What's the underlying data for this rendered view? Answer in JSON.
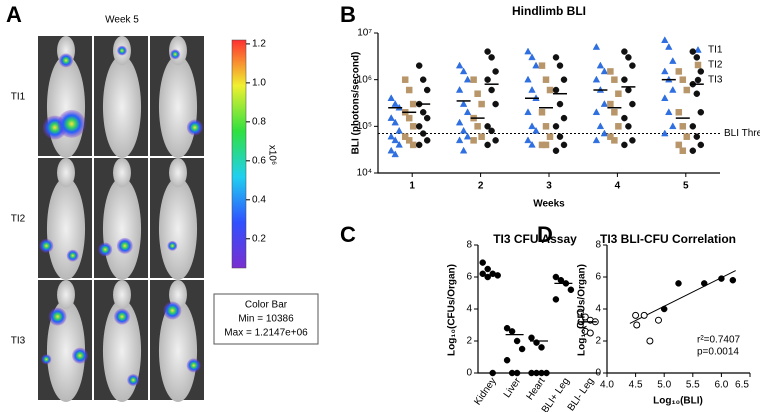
{
  "chart_data": [
    {
      "type": "image-grid",
      "panel_label": "A",
      "title": "Week 5",
      "rows": [
        "TI1",
        "TI2",
        "TI3"
      ],
      "colorbar": {
        "ylim": [
          0.05,
          1.22
        ],
        "yticks": [
          0.2,
          0.4,
          0.6,
          0.8,
          {
            "value": 1,
            "label": "1.0"
          },
          1.2
        ],
        "label": "x10⁶",
        "box": [
          "Color Bar",
          "Min = 10386",
          "Max = 1.2147e+06"
        ]
      }
    },
    {
      "type": "strip",
      "panel_label": "B",
      "title": "Hindlimb BLI",
      "ylabel": "BLI (photons/second)",
      "xlabel": "Weeks",
      "log_y": true,
      "x": [
        1,
        2,
        3,
        4,
        5
      ],
      "xlim": [
        0.5,
        5.5
      ],
      "ylim": [
        10000.0,
        10000000.0
      ],
      "yticks": [
        {
          "value": 10000.0,
          "label": "10⁴"
        },
        {
          "value": 100000.0,
          "label": "10⁵"
        },
        {
          "value": 1000000.0,
          "label": "10⁶"
        },
        {
          "value": 10000000.0,
          "label": "10⁷"
        }
      ],
      "threshold": {
        "value": 70000.0,
        "label": "BLI Threshold"
      },
      "series": [
        {
          "name": "TI1",
          "color": "#2f6fe0",
          "marker": "triangle",
          "values": [
            [
              400000.0,
              300000.0,
              250000.0,
              150000.0,
              120000.0,
              80000.0,
              60000.0,
              50000.0,
              40000.0,
              30000.0,
              25000.0
            ],
            [
              2000000.0,
              1500000.0,
              1000000.0,
              600000.0,
              300000.0,
              200000.0,
              120000.0,
              80000.0,
              60000.0,
              50000.0,
              30000.0
            ],
            [
              4000000.0,
              3000000.0,
              2000000.0,
              1000000.0,
              600000.0,
              400000.0,
              200000.0,
              100000.0,
              80000.0,
              50000.0,
              40000.0
            ],
            [
              5000000.0,
              2000000.0,
              1500000.0,
              1000000.0,
              600000.0,
              300000.0,
              200000.0,
              100000.0,
              70000.0,
              50000.0
            ],
            [
              7000000.0,
              5000000.0,
              2500000.0,
              1500000.0,
              1000000.0,
              600000.0,
              400000.0,
              200000.0,
              100000.0,
              70000.0
            ]
          ],
          "medians": [
            250000.0,
            350000.0,
            400000.0,
            600000.0,
            1000000.0
          ]
        },
        {
          "name": "TI2",
          "color": "#b8966a",
          "marker": "square",
          "values": [
            [
              1000000.0,
              600000.0,
              300000.0,
              200000.0,
              150000.0,
              100000.0,
              60000.0,
              50000.0,
              40000.0
            ],
            [
              1000000.0,
              500000.0,
              300000.0,
              150000.0,
              100000.0,
              60000.0,
              50000.0
            ],
            [
              2000000.0,
              1000000.0,
              600000.0,
              200000.0,
              100000.0,
              60000.0,
              40000.0,
              40000.0
            ],
            [
              1500000.0,
              1000000.0,
              500000.0,
              300000.0,
              200000.0,
              100000.0,
              60000.0,
              50000.0
            ],
            [
              1500000.0,
              1000000.0,
              600000.0,
              200000.0,
              100000.0,
              60000.0,
              40000.0,
              30000.0
            ]
          ],
          "medians": [
            200000.0,
            150000.0,
            250000.0,
            250000.0,
            150000.0
          ]
        },
        {
          "name": "TI3",
          "color": "#111111",
          "marker": "circle",
          "values": [
            [
              2000000.0,
              1000000.0,
              600000.0,
              300000.0,
              200000.0,
              150000.0,
              100000.0,
              70000.0,
              50000.0,
              40000.0
            ],
            [
              4000000.0,
              3000000.0,
              1500000.0,
              1000000.0,
              600000.0,
              300000.0,
              100000.0,
              80000.0,
              50000.0,
              40000.0
            ],
            [
              3000000.0,
              2000000.0,
              1000000.0,
              600000.0,
              300000.0,
              150000.0,
              100000.0,
              60000.0,
              40000.0,
              30000.0
            ],
            [
              4000000.0,
              3000000.0,
              2000000.0,
              1000000.0,
              600000.0,
              300000.0,
              150000.0,
              100000.0,
              50000.0,
              40000.0
            ],
            [
              4000000.0,
              3000000.0,
              1500000.0,
              800000.0,
              500000.0,
              200000.0,
              100000.0,
              60000.0,
              40000.0,
              30000.0
            ]
          ],
          "medians": [
            300000.0,
            800000.0,
            500000.0,
            700000.0,
            800000.0
          ]
        }
      ]
    },
    {
      "type": "dot",
      "panel_label": "C",
      "title": "TI3 CFU Assay",
      "ylabel": "Log₁₀(CFUs/Organ)",
      "categories": [
        "Kidney",
        "Liver",
        "Heart",
        "BLI+ Leg",
        "BLI- Leg"
      ],
      "open": [
        false,
        false,
        false,
        false,
        true
      ],
      "ylim": [
        0,
        8
      ],
      "yticks": [
        0,
        2,
        4,
        6,
        8
      ],
      "values": [
        [
          6.9,
          6.5,
          6.2,
          6.1,
          6.2,
          6.0,
          0
        ],
        [
          2.8,
          2.6,
          2.0,
          1.5,
          0.8,
          0,
          0
        ],
        [
          2.2,
          1.9,
          1.6,
          0,
          0,
          0,
          0
        ],
        [
          6.0,
          5.8,
          5.6,
          5.2,
          4.6
        ],
        [
          3.8,
          3.5,
          3.3,
          3.2,
          3.0,
          2.6,
          2.5
        ]
      ],
      "medians": [
        6.1,
        2.4,
        2.0,
        5.6,
        3.2
      ]
    },
    {
      "type": "scatter",
      "panel_label": "D",
      "title": "TI3 BLI-CFU Correlation",
      "ylabel": "Log₁₀(CFUs/Organ)",
      "xlabel": "Log₁₀(BLI)",
      "xlim": [
        4.0,
        6.5
      ],
      "ylim": [
        0,
        8
      ],
      "xticks": [
        {
          "value": 4,
          "label": "4.0"
        },
        4.5,
        {
          "value": 5,
          "label": "5.0"
        },
        5.5,
        {
          "value": 6,
          "label": "6.0"
        },
        6.5
      ],
      "yticks": [
        0,
        2,
        4,
        6,
        8
      ],
      "series": [
        {
          "open": true,
          "x": [
            4.5,
            4.52,
            4.65,
            4.75,
            4.9
          ],
          "values": [
            3.6,
            3.0,
            3.6,
            2.0,
            3.3
          ]
        },
        {
          "open": false,
          "x": [
            5.0,
            5.25,
            5.7,
            6.0,
            6.2
          ],
          "values": [
            4.0,
            5.6,
            5.6,
            5.9,
            5.8
          ]
        }
      ],
      "fit": {
        "x": [
          4.4,
          6.25
        ],
        "y": [
          3.1,
          6.4
        ]
      },
      "annotations": [
        "r²=0.7407",
        "p=0.0014"
      ]
    }
  ]
}
